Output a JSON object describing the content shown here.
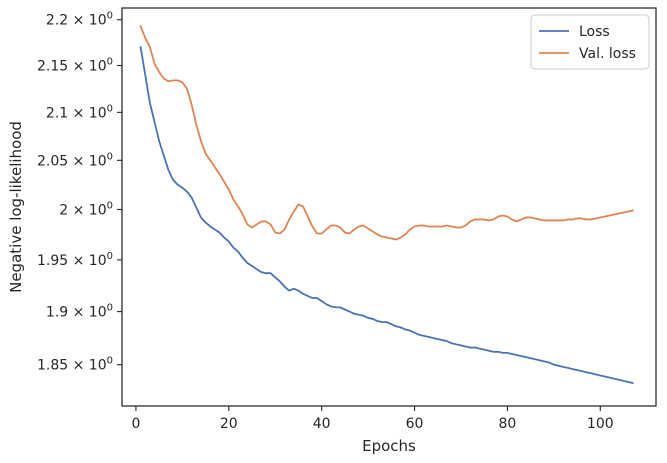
{
  "chart_data": {
    "type": "line",
    "xlabel": "Epochs",
    "ylabel": "Negative log-likelihood",
    "xlim": [
      -3,
      112
    ],
    "ylim": [
      1.812,
      2.213
    ],
    "y_scale": "log",
    "grid": false,
    "legend_position": "top-right",
    "x_ticks": [
      0,
      20,
      40,
      60,
      80,
      100
    ],
    "x_tick_labels": [
      "0",
      "20",
      "40",
      "60",
      "80",
      "100"
    ],
    "y_ticks": [
      1.85,
      1.9,
      1.95,
      2.0,
      2.05,
      2.1,
      2.15,
      2.2
    ],
    "y_tick_labels": [
      {
        "mantissa": "1.85",
        "base": "10",
        "exponent": "0"
      },
      {
        "mantissa": "1.9",
        "base": "10",
        "exponent": "0"
      },
      {
        "mantissa": "1.95",
        "base": "10",
        "exponent": "0"
      },
      {
        "mantissa": "2",
        "base": "10",
        "exponent": "0"
      },
      {
        "mantissa": "2.05",
        "base": "10",
        "exponent": "0"
      },
      {
        "mantissa": "2.1",
        "base": "10",
        "exponent": "0"
      },
      {
        "mantissa": "2.15",
        "base": "10",
        "exponent": "0"
      },
      {
        "mantissa": "2.2",
        "base": "10",
        "exponent": "0"
      }
    ],
    "x": [
      1,
      2,
      3,
      4,
      5,
      6,
      7,
      8,
      9,
      10,
      11,
      12,
      13,
      14,
      15,
      16,
      17,
      18,
      19,
      20,
      21,
      22,
      23,
      24,
      25,
      26,
      27,
      28,
      29,
      30,
      31,
      32,
      33,
      34,
      35,
      36,
      37,
      38,
      39,
      40,
      41,
      42,
      43,
      44,
      45,
      46,
      47,
      48,
      49,
      50,
      51,
      52,
      53,
      54,
      55,
      56,
      57,
      58,
      59,
      60,
      61,
      62,
      63,
      64,
      65,
      66,
      67,
      68,
      69,
      70,
      71,
      72,
      73,
      74,
      75,
      76,
      77,
      78,
      79,
      80,
      81,
      82,
      83,
      84,
      85,
      86,
      87,
      88,
      89,
      90,
      91,
      92,
      93,
      94,
      95,
      96,
      97,
      98,
      99,
      100,
      101,
      102,
      103,
      104,
      105,
      106,
      107
    ],
    "series": [
      {
        "name": "Loss",
        "color": "#4c72b0",
        "values": [
          2.17,
          2.14,
          2.11,
          2.09,
          2.07,
          2.055,
          2.04,
          2.03,
          2.025,
          2.022,
          2.018,
          2.012,
          2.002,
          1.992,
          1.987,
          1.983,
          1.98,
          1.977,
          1.972,
          1.968,
          1.962,
          1.958,
          1.952,
          1.947,
          1.944,
          1.941,
          1.938,
          1.937,
          1.937,
          1.933,
          1.929,
          1.924,
          1.92,
          1.922,
          1.92,
          1.917,
          1.915,
          1.913,
          1.913,
          1.91,
          1.907,
          1.905,
          1.904,
          1.904,
          1.902,
          1.9,
          1.898,
          1.897,
          1.896,
          1.894,
          1.893,
          1.891,
          1.89,
          1.89,
          1.888,
          1.886,
          1.885,
          1.883,
          1.882,
          1.88,
          1.878,
          1.877,
          1.876,
          1.875,
          1.874,
          1.873,
          1.872,
          1.87,
          1.869,
          1.868,
          1.867,
          1.866,
          1.866,
          1.865,
          1.864,
          1.863,
          1.862,
          1.862,
          1.861,
          1.861,
          1.86,
          1.859,
          1.858,
          1.857,
          1.856,
          1.855,
          1.854,
          1.853,
          1.852,
          1.85,
          1.849,
          1.848,
          1.847,
          1.846,
          1.845,
          1.844,
          1.843,
          1.842,
          1.841,
          1.84,
          1.839,
          1.838,
          1.837,
          1.836,
          1.835,
          1.834,
          1.833
        ]
      },
      {
        "name": "Val. loss",
        "color": "#dd8452",
        "values": [
          2.193,
          2.18,
          2.17,
          2.152,
          2.143,
          2.136,
          2.133,
          2.134,
          2.134,
          2.132,
          2.125,
          2.108,
          2.087,
          2.07,
          2.057,
          2.05,
          2.043,
          2.036,
          2.028,
          2.02,
          2.01,
          2.003,
          1.995,
          1.985,
          1.982,
          1.985,
          1.988,
          1.988,
          1.985,
          1.977,
          1.976,
          1.98,
          1.99,
          1.998,
          2.005,
          2.003,
          1.993,
          1.983,
          1.976,
          1.976,
          1.98,
          1.984,
          1.984,
          1.982,
          1.977,
          1.976,
          1.98,
          1.983,
          1.984,
          1.981,
          1.978,
          1.975,
          1.973,
          1.972,
          1.971,
          1.97,
          1.972,
          1.975,
          1.98,
          1.983,
          1.984,
          1.984,
          1.983,
          1.983,
          1.983,
          1.983,
          1.984,
          1.983,
          1.982,
          1.982,
          1.984,
          1.988,
          1.99,
          1.99,
          1.99,
          1.989,
          1.99,
          1.993,
          1.994,
          1.993,
          1.99,
          1.988,
          1.99,
          1.992,
          1.992,
          1.991,
          1.99,
          1.989,
          1.989,
          1.989,
          1.989,
          1.989,
          1.99,
          1.99,
          1.991,
          1.991,
          1.99,
          1.99,
          1.991,
          1.992,
          1.993,
          1.994,
          1.995,
          1.996,
          1.997,
          1.998,
          1.999
        ]
      }
    ]
  }
}
